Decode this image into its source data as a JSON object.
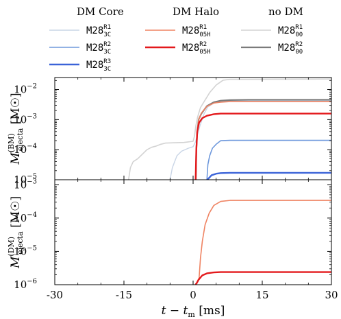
{
  "chart_data": {
    "type": "line",
    "legend": {
      "placement": "top",
      "groups": [
        {
          "title": "DM Core",
          "entries": [
            {
              "base": "M28",
              "sup": "R1",
              "sub": "3C",
              "color": "#c9d5e6",
              "width": 1.4
            },
            {
              "base": "M28",
              "sup": "R2",
              "sub": "3C",
              "color": "#6f99dc",
              "width": 1.6
            },
            {
              "base": "M28",
              "sup": "R3",
              "sub": "3C",
              "color": "#3b63d8",
              "width": 2.4
            }
          ]
        },
        {
          "title": "DM Halo",
          "entries": [
            {
              "base": "M28",
              "sup": "R1",
              "sub": "05H",
              "color": "#ef8362",
              "width": 1.6
            },
            {
              "base": "M28",
              "sup": "R2",
              "sub": "05H",
              "color": "#e3191c",
              "width": 2.4
            }
          ]
        },
        {
          "title": "no DM",
          "entries": [
            {
              "base": "M28",
              "sup": "R1",
              "sub": "00",
              "color": "#d3d3d3",
              "width": 1.6
            },
            {
              "base": "M28",
              "sup": "R2",
              "sub": "00",
              "color": "#7b7b7b",
              "width": 2.2
            }
          ]
        }
      ]
    },
    "xlabel": {
      "main": "t − t",
      "sub": "m",
      "unit": " [ms]"
    },
    "xlim": [
      -30,
      30
    ],
    "xticks": [
      -30,
      -15,
      0,
      15,
      30
    ],
    "xtick_labels": [
      "-30",
      "-15",
      "0",
      "15",
      "30"
    ],
    "panels": [
      {
        "ylabel": {
          "main": "M",
          "sup": "(BM)",
          "sub": "ejecta",
          "unit": " [M☉]"
        },
        "yscale": "log",
        "ylim_exp": [
          -5,
          -1.6
        ],
        "yticks": [
          {
            "exp": -5,
            "label": "10",
            "sup": "−5"
          },
          {
            "exp": -4,
            "label": "10",
            "sup": "−4"
          },
          {
            "exp": -3,
            "label": "10",
            "sup": "−3"
          },
          {
            "exp": -2,
            "label": "10",
            "sup": "−2"
          }
        ],
        "series": [
          {
            "name": "M28 R1 00",
            "color": "#d3d3d3",
            "width": 1.6,
            "points": [
              [
                -14,
                -5
              ],
              [
                -13.6,
                -4.6
              ],
              [
                -13,
                -4.4
              ],
              [
                -12,
                -4.3
              ],
              [
                -11,
                -4.15
              ],
              [
                -10,
                -4.0
              ],
              [
                -9,
                -3.92
              ],
              [
                -8,
                -3.88
              ],
              [
                -7,
                -3.82
              ],
              [
                -6,
                -3.78
              ],
              [
                -4,
                -3.77
              ],
              [
                -2,
                -3.76
              ],
              [
                0,
                -3.72
              ],
              [
                0.3,
                -3.55
              ],
              [
                0.6,
                -3.2
              ],
              [
                1,
                -2.9
              ],
              [
                1.6,
                -2.6
              ],
              [
                2.4,
                -2.4
              ],
              [
                3.6,
                -2.1
              ],
              [
                5,
                -1.85
              ],
              [
                6.5,
                -1.69
              ],
              [
                8,
                -1.66
              ],
              [
                12,
                -1.66
              ],
              [
                30,
                -1.65
              ]
            ]
          },
          {
            "name": "M28 R1 3C",
            "color": "#c9d5e6",
            "width": 1.4,
            "points": [
              [
                -5,
                -5
              ],
              [
                -4.5,
                -4.6
              ],
              [
                -3.5,
                -4.2
              ],
              [
                -2.5,
                -4.05
              ],
              [
                -1,
                -3.95
              ],
              [
                0,
                -3.9
              ],
              [
                0.5,
                -3.75
              ],
              [
                1.5,
                -3.2
              ],
              [
                2.4,
                -2.8
              ],
              [
                3.2,
                -2.58
              ],
              [
                5,
                -2.4
              ],
              [
                8,
                -2.38
              ],
              [
                12,
                -2.37
              ],
              [
                30,
                -2.37
              ]
            ]
          },
          {
            "name": "M28 R2 00",
            "color": "#7b7b7b",
            "width": 2.2,
            "points": [
              [
                0.6,
                -5
              ],
              [
                0.7,
                -4
              ],
              [
                0.9,
                -3.4
              ],
              [
                1.2,
                -3.0
              ],
              [
                1.8,
                -2.8
              ],
              [
                3,
                -2.55
              ],
              [
                4.5,
                -2.42
              ],
              [
                6,
                -2.37
              ],
              [
                8,
                -2.35
              ],
              [
                12,
                -2.34
              ],
              [
                30,
                -2.34
              ]
            ]
          },
          {
            "name": "M28 R1 05H",
            "color": "#ef8362",
            "width": 1.6,
            "points": [
              [
                0.6,
                -5
              ],
              [
                0.7,
                -4
              ],
              [
                0.9,
                -3.4
              ],
              [
                1.2,
                -3.0
              ],
              [
                1.8,
                -2.78
              ],
              [
                3,
                -2.56
              ],
              [
                4.5,
                -2.45
              ],
              [
                6,
                -2.42
              ],
              [
                8,
                -2.4
              ],
              [
                12,
                -2.4
              ],
              [
                30,
                -2.4
              ]
            ]
          },
          {
            "name": "M28 R2 05H",
            "color": "#e3191c",
            "width": 2.4,
            "points": [
              [
                0.55,
                -5
              ],
              [
                0.7,
                -4
              ],
              [
                0.9,
                -3.4
              ],
              [
                1.3,
                -3.1
              ],
              [
                2,
                -2.95
              ],
              [
                3,
                -2.87
              ],
              [
                4.5,
                -2.82
              ],
              [
                6,
                -2.8
              ],
              [
                8,
                -2.8
              ],
              [
                30,
                -2.8
              ]
            ]
          },
          {
            "name": "M28 R2 3C",
            "color": "#6f99dc",
            "width": 1.6,
            "points": [
              [
                3.0,
                -5
              ],
              [
                3.2,
                -4.5
              ],
              [
                3.6,
                -4.2
              ],
              [
                4.2,
                -3.95
              ],
              [
                5,
                -3.82
              ],
              [
                6,
                -3.7
              ],
              [
                8,
                -3.69
              ],
              [
                30,
                -3.69
              ]
            ]
          },
          {
            "name": "M28 R3 3C",
            "color": "#3b63d8",
            "width": 2.4,
            "points": [
              [
                3.0,
                -5
              ],
              [
                3.4,
                -4.95
              ],
              [
                4,
                -4.85
              ],
              [
                5,
                -4.8
              ],
              [
                6,
                -4.78
              ],
              [
                8,
                -4.77
              ],
              [
                30,
                -4.77
              ]
            ]
          }
        ]
      },
      {
        "ylabel": {
          "main": "M",
          "sup": "(DM)",
          "sub": "ejecta",
          "unit": " [M☉]"
        },
        "yscale": "log",
        "ylim_exp": [
          -6,
          -2.85
        ],
        "yticks": [
          {
            "exp": -6,
            "label": "10",
            "sup": "−6"
          },
          {
            "exp": -5,
            "label": "10",
            "sup": "−5"
          },
          {
            "exp": -4,
            "label": "10",
            "sup": "−4"
          },
          {
            "exp": -3,
            "label": "10",
            "sup": "−3"
          }
        ],
        "series": [
          {
            "name": "M28 R1 05H",
            "color": "#ef8362",
            "width": 1.6,
            "points": [
              [
                0.6,
                -6
              ],
              [
                0.9,
                -5.9
              ],
              [
                1.3,
                -5.8
              ],
              [
                1.6,
                -5.2
              ],
              [
                2.0,
                -4.7
              ],
              [
                2.6,
                -4.2
              ],
              [
                3.5,
                -3.85
              ],
              [
                4.5,
                -3.62
              ],
              [
                6,
                -3.5
              ],
              [
                8,
                -3.47
              ],
              [
                30,
                -3.47
              ]
            ]
          },
          {
            "name": "M28 R2 05H",
            "color": "#e3191c",
            "width": 2.4,
            "points": [
              [
                0.5,
                -6
              ],
              [
                0.8,
                -5.95
              ],
              [
                1.2,
                -5.85
              ],
              [
                2,
                -5.72
              ],
              [
                3,
                -5.66
              ],
              [
                4.5,
                -5.63
              ],
              [
                6,
                -5.62
              ],
              [
                8,
                -5.62
              ],
              [
                30,
                -5.62
              ]
            ]
          }
        ]
      }
    ]
  }
}
